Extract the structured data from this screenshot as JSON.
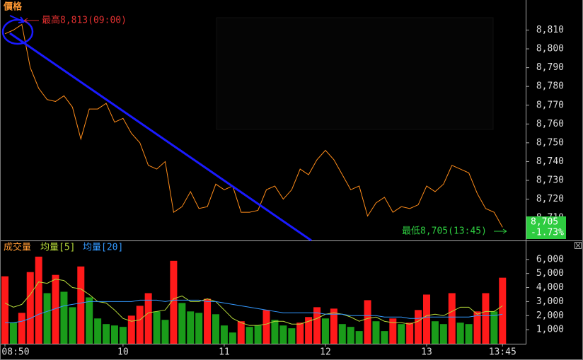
{
  "chart_data": [
    {
      "type": "line",
      "title": "價格",
      "color": "#ff8c1a",
      "values": [
        8808,
        8810,
        8813,
        8790,
        8779,
        8773,
        8772,
        8775,
        8769,
        8752,
        8768,
        8768,
        8771,
        8761,
        8763,
        8755,
        8750,
        8738,
        8736,
        8740,
        8713,
        8716,
        8724,
        8715,
        8716,
        8728,
        8725,
        8727,
        8713,
        8713,
        8714,
        8725,
        8727,
        8720,
        8725,
        8736,
        8733,
        8741,
        8746,
        8741,
        8733,
        8725,
        8727,
        8711,
        8718,
        8721,
        8713,
        8716,
        8715,
        8717,
        8727,
        8724,
        8728,
        8738,
        8736,
        8734,
        8723,
        8715,
        8713,
        8705
      ],
      "high_label": "最高8,813(09:00)",
      "low_label": "最低8,705(13:45)",
      "last_price": "8,705",
      "change": "-1.73%",
      "ylim": [
        8698,
        8826
      ],
      "yticks": [
        {
          "value": 8710,
          "label": "8,710"
        },
        {
          "value": 8720,
          "label": "8,720"
        },
        {
          "value": 8730,
          "label": "8,730"
        },
        {
          "value": 8740,
          "label": "8,740"
        },
        {
          "value": 8750,
          "label": "8,750"
        },
        {
          "value": 8760,
          "label": "8,760"
        },
        {
          "value": 8770,
          "label": "8,770"
        },
        {
          "value": 8780,
          "label": "8,780"
        },
        {
          "value": 8790,
          "label": "8,790"
        },
        {
          "value": 8800,
          "label": "8,800"
        },
        {
          "value": 8810,
          "label": "8,810"
        }
      ]
    },
    {
      "type": "bar",
      "title": "成交量",
      "categories": [
        "08:50",
        null,
        null,
        null,
        null,
        null,
        null,
        null,
        null,
        null,
        null,
        null,
        null,
        null,
        "10",
        null,
        null,
        null,
        null,
        null,
        null,
        null,
        null,
        null,
        null,
        null,
        "11",
        null,
        null,
        null,
        null,
        null,
        null,
        null,
        null,
        null,
        null,
        null,
        "12",
        null,
        null,
        null,
        null,
        null,
        null,
        null,
        null,
        null,
        null,
        null,
        "13",
        null,
        null,
        null,
        null,
        null,
        null,
        null,
        null,
        "13:45"
      ],
      "values": [
        4800,
        1500,
        2200,
        5100,
        6200,
        3600,
        4900,
        3700,
        2600,
        5500,
        3300,
        1800,
        1400,
        1300,
        1200,
        2000,
        2700,
        3600,
        2300,
        1700,
        5900,
        2900,
        2300,
        2200,
        3200,
        2100,
        1300,
        800,
        1600,
        1200,
        1300,
        2400,
        1700,
        1300,
        1100,
        1500,
        1900,
        2600,
        1800,
        2500,
        1400,
        1200,
        900,
        3100,
        1600,
        900,
        1800,
        1400,
        1500,
        2400,
        3500,
        1600,
        1400,
        3600,
        1500,
        1400,
        2300,
        3600,
        2300,
        4700
      ],
      "colors": [
        "#ff1a1a",
        "#1a9c1a",
        "#ff1a1a",
        "#ff1a1a",
        "#ff1a1a",
        "#1a9c1a",
        "#ff1a1a",
        "#1a9c1a",
        "#1a9c1a",
        "#ff1a1a",
        "#1a9c1a",
        "#1a9c1a",
        "#1a9c1a",
        "#1a9c1a",
        "#1a9c1a",
        "#ff1a1a",
        "#ff1a1a",
        "#ff1a1a",
        "#1a9c1a",
        "#1a9c1a",
        "#ff1a1a",
        "#1a9c1a",
        "#1a9c1a",
        "#1a9c1a",
        "#ff1a1a",
        "#1a9c1a",
        "#1a9c1a",
        "#1a9c1a",
        "#ff1a1a",
        "#1a9c1a",
        "#1a9c1a",
        "#ff1a1a",
        "#1a9c1a",
        "#1a9c1a",
        "#1a9c1a",
        "#ff1a1a",
        "#ff1a1a",
        "#ff1a1a",
        "#1a9c1a",
        "#ff1a1a",
        "#1a9c1a",
        "#1a9c1a",
        "#1a9c1a",
        "#ff1a1a",
        "#1a9c1a",
        "#1a9c1a",
        "#ff1a1a",
        "#1a9c1a",
        "#ff1a1a",
        "#ff1a1a",
        "#ff1a1a",
        "#1a9c1a",
        "#1a9c1a",
        "#ff1a1a",
        "#1a9c1a",
        "#1a9c1a",
        "#ff1a1a",
        "#ff1a1a",
        "#1a9c1a",
        "#ff1a1a"
      ],
      "series": [
        {
          "name": "均量[5]",
          "color": "#b5d93a",
          "values": [
            2900,
            2600,
            2800,
            3500,
            4400,
            4300,
            4600,
            4500,
            4000,
            3900,
            3500,
            3000,
            2900,
            2400,
            1800,
            1600,
            1700,
            2200,
            2300,
            2400,
            3200,
            3400,
            3000,
            3000,
            3200,
            3000,
            2400,
            1800,
            1500,
            1300,
            1300,
            1400,
            1600,
            1600,
            1400,
            1400,
            1600,
            1800,
            2100,
            2200,
            2100,
            1900,
            1600,
            1800,
            1900,
            1600,
            1500,
            1500,
            1400,
            1600,
            2000,
            2100,
            2000,
            2300,
            2600,
            2600,
            2100,
            2300,
            2300,
            2700
          ]
        },
        {
          "name": "均量[20]",
          "color": "#3399ff",
          "values": [
            1500,
            1500,
            1600,
            1800,
            2100,
            2300,
            2500,
            2700,
            2800,
            2900,
            3000,
            3000,
            3000,
            3000,
            3000,
            3000,
            3100,
            3100,
            3100,
            3000,
            3100,
            3100,
            3100,
            3100,
            3000,
            3000,
            2900,
            2800,
            2700,
            2600,
            2500,
            2400,
            2300,
            2200,
            2200,
            2200,
            2200,
            2200,
            2100,
            2100,
            2100,
            2000,
            2000,
            2000,
            2000,
            1900,
            1900,
            1900,
            1800,
            1800,
            1900,
            1900,
            1900,
            1900,
            1900,
            1900,
            2000,
            2000,
            2000,
            2100
          ]
        }
      ],
      "ylim": [
        0,
        7300
      ],
      "yticks": [
        {
          "value": 1000,
          "label": "1,000"
        },
        {
          "value": 2000,
          "label": "2,000"
        },
        {
          "value": 3000,
          "label": "3,000"
        },
        {
          "value": 4000,
          "label": "4,000"
        },
        {
          "value": 5000,
          "label": "5,000"
        },
        {
          "value": 6000,
          "label": "6,000"
        }
      ]
    }
  ]
}
